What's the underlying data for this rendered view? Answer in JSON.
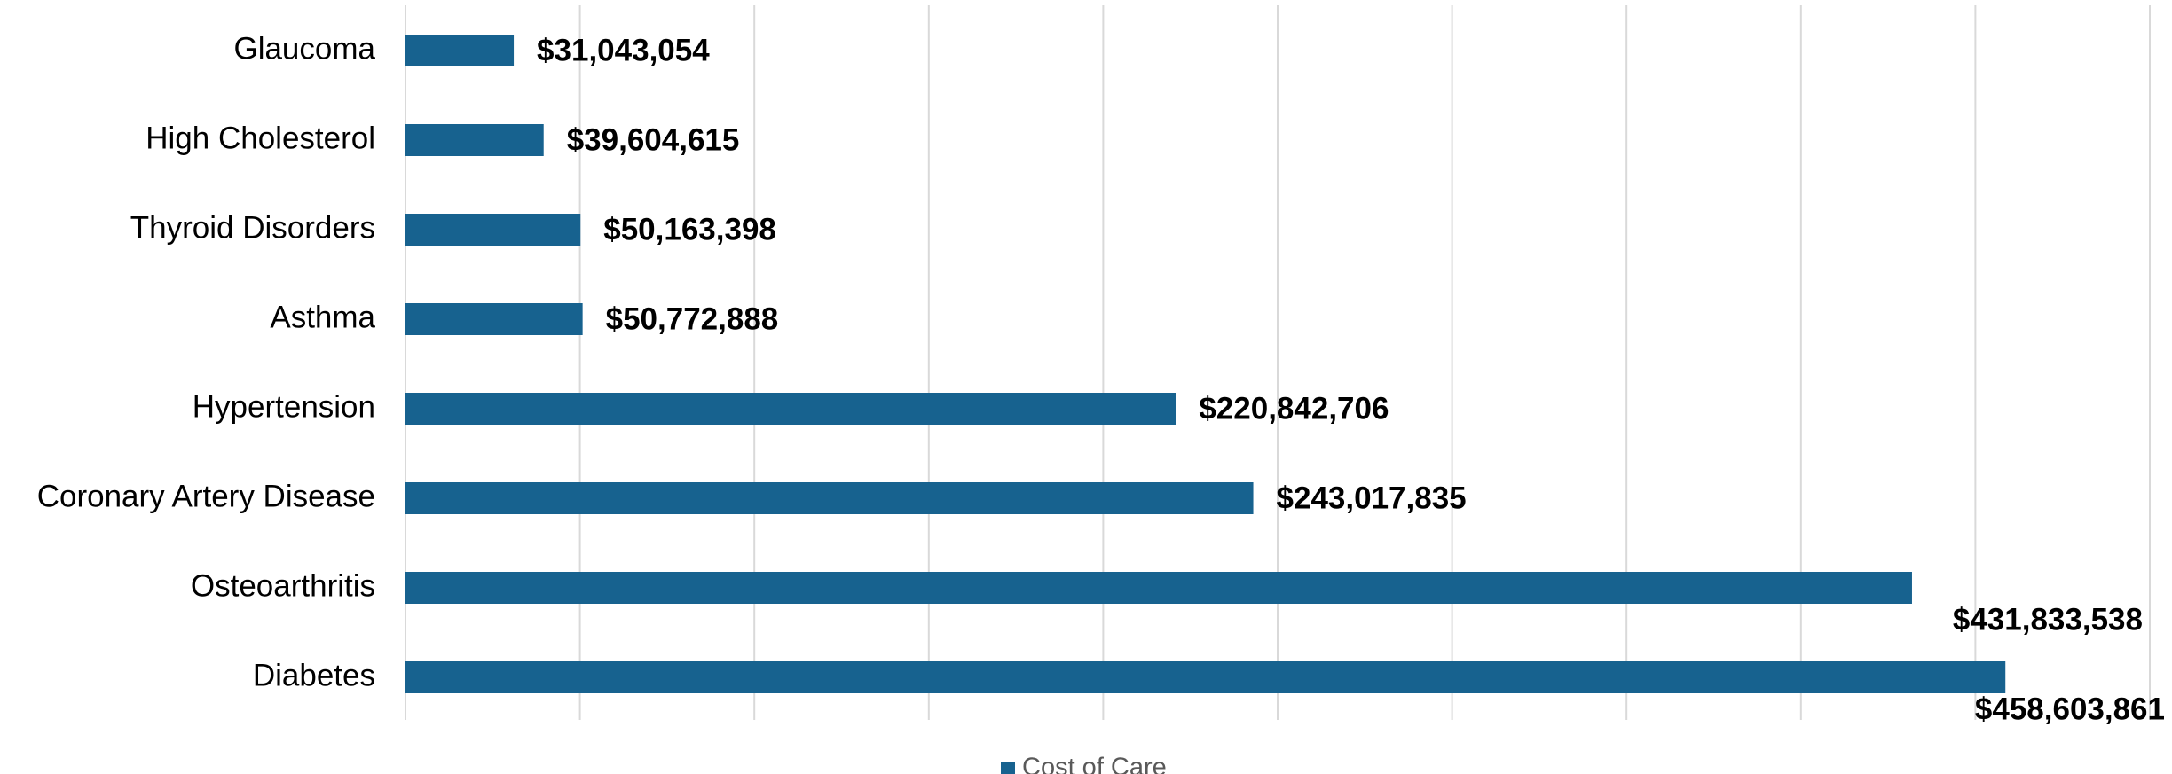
{
  "chart_data": {
    "type": "hbar",
    "categories": [
      "Glaucoma",
      "High Cholesterol",
      "Thyroid Disorders",
      "Asthma",
      "Hypertension",
      "Coronary Artery Disease",
      "Osteoarthritis",
      "Diabetes"
    ],
    "series": [
      {
        "name": "Cost of Care",
        "color": "#17628f",
        "values": [
          31043054,
          39604615,
          50163398,
          50772888,
          220842706,
          243017835,
          431833538,
          458603861
        ],
        "value_labels": [
          "$31,043,054",
          "$39,604,615",
          "$50,163,398",
          "$50,772,888",
          "$220,842,706",
          "$243,017,835",
          "$431,833,538",
          "$458,603,861"
        ]
      }
    ],
    "xlim": [
      0,
      500000000
    ],
    "xticks": [
      0,
      50000000,
      100000000,
      150000000,
      200000000,
      250000000,
      300000000,
      350000000,
      400000000,
      450000000,
      500000000
    ],
    "grid": true,
    "legend": "bottom"
  }
}
